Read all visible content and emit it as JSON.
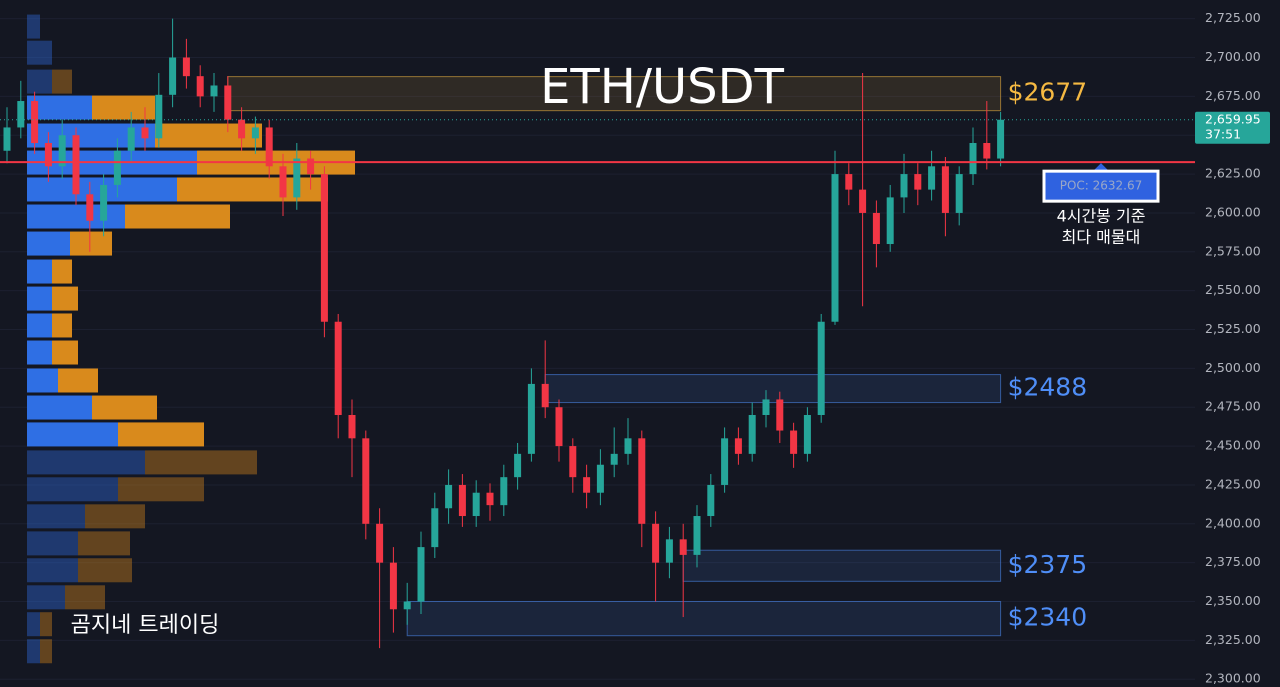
{
  "chart_data": {
    "type": "candlestick",
    "title": "ETH/USDT",
    "open": [
      2640,
      2655,
      2672,
      2645,
      2630,
      2650,
      2612,
      2595,
      2618,
      2640,
      2655,
      2648,
      2676,
      2700,
      2688,
      2675,
      2682,
      2660,
      2648,
      2655,
      2630,
      2610,
      2635,
      2625,
      2530,
      2470,
      2455,
      2400,
      2375,
      2345,
      2350,
      2385,
      2410,
      2425,
      2405,
      2420,
      2412,
      2430,
      2445,
      2490,
      2475,
      2450,
      2430,
      2420,
      2438,
      2445,
      2455,
      2400,
      2375,
      2390,
      2380,
      2405,
      2425,
      2455,
      2445,
      2470,
      2480,
      2460,
      2445,
      2470,
      2530,
      2625,
      2615,
      2600,
      2580,
      2610,
      2625,
      2615,
      2630,
      2600,
      2625,
      2645,
      2635
    ],
    "high": [
      2668,
      2685,
      2678,
      2652,
      2660,
      2655,
      2620,
      2625,
      2648,
      2665,
      2668,
      2690,
      2725,
      2712,
      2695,
      2690,
      2688,
      2668,
      2662,
      2660,
      2638,
      2645,
      2640,
      2630,
      2535,
      2480,
      2460,
      2410,
      2385,
      2362,
      2395,
      2420,
      2435,
      2432,
      2428,
      2426,
      2438,
      2452,
      2500,
      2518,
      2480,
      2455,
      2438,
      2448,
      2462,
      2468,
      2460,
      2408,
      2398,
      2400,
      2412,
      2432,
      2462,
      2462,
      2478,
      2486,
      2485,
      2465,
      2475,
      2535,
      2640,
      2632,
      2690,
      2608,
      2618,
      2638,
      2632,
      2640,
      2636,
      2630,
      2655,
      2672,
      2665
    ],
    "low": [
      2632,
      2648,
      2638,
      2620,
      2622,
      2605,
      2575,
      2585,
      2610,
      2632,
      2640,
      2642,
      2668,
      2680,
      2668,
      2665,
      2652,
      2640,
      2638,
      2622,
      2598,
      2602,
      2615,
      2520,
      2455,
      2430,
      2390,
      2320,
      2330,
      2335,
      2342,
      2378,
      2400,
      2398,
      2398,
      2402,
      2405,
      2422,
      2440,
      2468,
      2440,
      2420,
      2410,
      2412,
      2430,
      2438,
      2385,
      2350,
      2365,
      2340,
      2372,
      2398,
      2420,
      2438,
      2440,
      2462,
      2452,
      2436,
      2440,
      2465,
      2528,
      2605,
      2540,
      2565,
      2575,
      2600,
      2605,
      2608,
      2585,
      2592,
      2618,
      2628,
      2630
    ],
    "close": [
      2655,
      2672,
      2645,
      2630,
      2650,
      2612,
      2595,
      2618,
      2640,
      2655,
      2648,
      2676,
      2700,
      2688,
      2675,
      2682,
      2660,
      2648,
      2655,
      2630,
      2610,
      2635,
      2625,
      2530,
      2470,
      2455,
      2400,
      2375,
      2345,
      2350,
      2385,
      2410,
      2425,
      2405,
      2420,
      2412,
      2430,
      2445,
      2490,
      2475,
      2450,
      2430,
      2420,
      2438,
      2445,
      2455,
      2400,
      2375,
      2390,
      2380,
      2405,
      2425,
      2455,
      2445,
      2470,
      2480,
      2460,
      2445,
      2470,
      2530,
      2625,
      2615,
      2600,
      2580,
      2610,
      2625,
      2615,
      2630,
      2600,
      2625,
      2645,
      2635,
      2659.95
    ],
    "colors": {
      "up": "#26a69a",
      "down": "#f23645"
    },
    "ylim": [
      2295,
      2737
    ],
    "yticks": [
      {
        "value": 2300,
        "label": "2,300.00"
      },
      {
        "value": 2325,
        "label": "2,325.00"
      },
      {
        "value": 2350,
        "label": "2,350.00"
      },
      {
        "value": 2375,
        "label": "2,375.00"
      },
      {
        "value": 2400,
        "label": "2,400.00"
      },
      {
        "value": 2425,
        "label": "2,425.00"
      },
      {
        "value": 2450,
        "label": "2,450.00"
      },
      {
        "value": 2475,
        "label": "2,475.00"
      },
      {
        "value": 2500,
        "label": "2,500.00"
      },
      {
        "value": 2525,
        "label": "2,525.00"
      },
      {
        "value": 2550,
        "label": "2,550.00"
      },
      {
        "value": 2575,
        "label": "2,575.00"
      },
      {
        "value": 2600,
        "label": "2,600.00"
      },
      {
        "value": 2625,
        "label": "2,625.00"
      },
      {
        "value": 2650,
        "label": "2,650.00"
      },
      {
        "value": 2675,
        "label": "2,675.00"
      },
      {
        "value": 2700,
        "label": "2,700.00"
      },
      {
        "value": 2725,
        "label": "2,725.00"
      }
    ],
    "grid": true,
    "last_price": {
      "value": 2659.95,
      "label": "2,659.95"
    },
    "countdown": "37:51",
    "poc": {
      "value": 2632.67,
      "label": "POC: 2632.67",
      "color": "#f23645"
    },
    "poc_note": [
      "4시간봉 기준",
      "최다 매물대"
    ],
    "zones": [
      {
        "low": 2665.8,
        "high": 2687.7,
        "start": 16,
        "label": "$2677",
        "color": "#f5b942"
      },
      {
        "low": 2478,
        "high": 2496,
        "start": 39,
        "label": "$2488",
        "color": "#4f8ef7"
      },
      {
        "low": 2363,
        "high": 2383,
        "start": 49,
        "label": "$2375",
        "color": "#4f8ef7"
      },
      {
        "low": 2328,
        "high": 2350,
        "start": 29,
        "label": "$2340",
        "color": "#4f8ef7"
      }
    ],
    "volume_profile": {
      "levels": [
        2719.9,
        2703.1,
        2684.5,
        2667.8,
        2649.8,
        2632.4,
        2615.1,
        2597.7,
        2580.3,
        2562.3,
        2544.9,
        2527.6,
        2510.2,
        2492.2,
        2474.8,
        2457.5,
        2439.5,
        2422.2,
        2404.8,
        2387.4,
        2370.1,
        2352.7,
        2335.4,
        2318.0
      ],
      "buy": [
        13,
        25,
        25,
        65,
        128,
        170,
        150,
        98,
        43,
        25,
        25,
        25,
        25,
        31,
        65,
        91,
        118,
        91,
        58,
        51,
        51,
        38,
        13,
        13
      ],
      "sell": [
        0,
        0,
        20,
        63,
        107,
        158,
        151,
        105,
        42,
        20,
        26,
        20,
        26,
        40,
        65,
        86,
        112,
        86,
        60,
        52,
        54,
        40,
        12,
        12
      ],
      "buy_color": "#2f6fe4",
      "sell_color": "#d98a1c",
      "value_area": [
        2440,
        2675
      ]
    },
    "watermark": "곰지네 트레이딩"
  }
}
